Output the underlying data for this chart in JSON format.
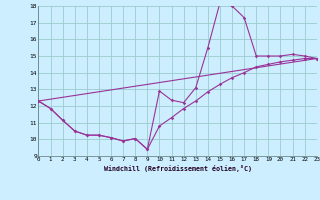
{
  "xlabel": "Windchill (Refroidissement éolien,°C)",
  "bg_color": "#cceeff",
  "line_color": "#993399",
  "grid_color": "#99cccc",
  "xmin": 0,
  "xmax": 23,
  "ymin": 9,
  "ymax": 18,
  "line1_x": [
    0,
    1,
    2,
    3,
    4,
    5,
    6,
    7,
    8,
    9,
    10,
    11,
    12,
    13,
    14,
    15,
    16,
    17,
    18,
    19,
    20,
    21,
    22,
    23
  ],
  "line1_y": [
    12.3,
    11.85,
    11.15,
    10.5,
    10.25,
    10.25,
    10.1,
    9.9,
    10.05,
    9.4,
    12.9,
    12.35,
    12.2,
    13.1,
    15.5,
    18.2,
    18.0,
    17.3,
    15.0,
    15.0,
    15.0,
    15.1,
    15.0,
    14.85
  ],
  "line2_x": [
    0,
    1,
    2,
    3,
    4,
    5,
    6,
    7,
    8,
    9,
    10,
    11,
    12,
    13,
    14,
    15,
    16,
    17,
    18,
    19,
    20,
    21,
    22,
    23
  ],
  "line2_y": [
    12.3,
    11.85,
    11.15,
    10.5,
    10.25,
    10.25,
    10.1,
    9.9,
    10.05,
    9.4,
    10.8,
    11.3,
    11.85,
    12.3,
    12.85,
    13.3,
    13.7,
    14.0,
    14.35,
    14.5,
    14.65,
    14.75,
    14.85,
    14.85
  ],
  "line3_x": [
    0,
    23
  ],
  "line3_y": [
    12.3,
    14.85
  ]
}
